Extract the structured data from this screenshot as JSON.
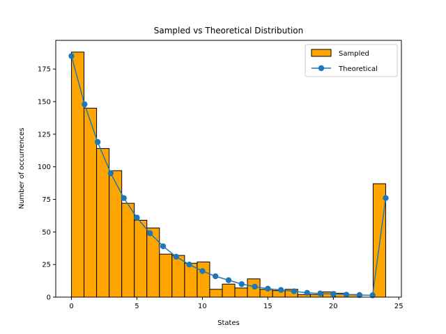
{
  "chart_data": {
    "type": "bar",
    "title": "Sampled vs Theoretical Distribution",
    "xlabel": "States",
    "ylabel": "Number of occurrences",
    "xlim": [
      -1.2,
      25.2
    ],
    "ylim": [
      0,
      197
    ],
    "xticks": [
      0,
      5,
      10,
      15,
      20,
      25
    ],
    "yticks": [
      0,
      25,
      50,
      75,
      100,
      125,
      150,
      175
    ],
    "legend": "top-right",
    "grid": false,
    "series": [
      {
        "name": "Sampled",
        "kind": "bar",
        "color": "#ffa500",
        "edge_color": "#000000",
        "bin_start": 0,
        "bin_width": 0.96,
        "values": [
          188,
          145,
          114,
          97,
          72,
          59,
          53,
          33,
          32,
          26,
          27,
          6,
          10,
          7,
          14,
          6,
          5,
          6,
          2,
          2,
          4,
          3,
          2,
          0,
          87
        ]
      },
      {
        "name": "Theoretical",
        "kind": "line",
        "color": "#1f77b4",
        "x": [
          0,
          1,
          2,
          3,
          4,
          5,
          6,
          7,
          8,
          9,
          10,
          11,
          12,
          13,
          14,
          15,
          16,
          17,
          18,
          19,
          20,
          21,
          22,
          23,
          24
        ],
        "values": [
          185,
          148,
          119,
          95,
          76,
          61,
          49,
          39,
          31,
          25,
          20,
          16,
          13,
          10,
          8,
          6.5,
          5.5,
          4.5,
          3.3,
          2.8,
          2.4,
          1.9,
          1.6,
          1.4,
          76
        ]
      }
    ]
  }
}
